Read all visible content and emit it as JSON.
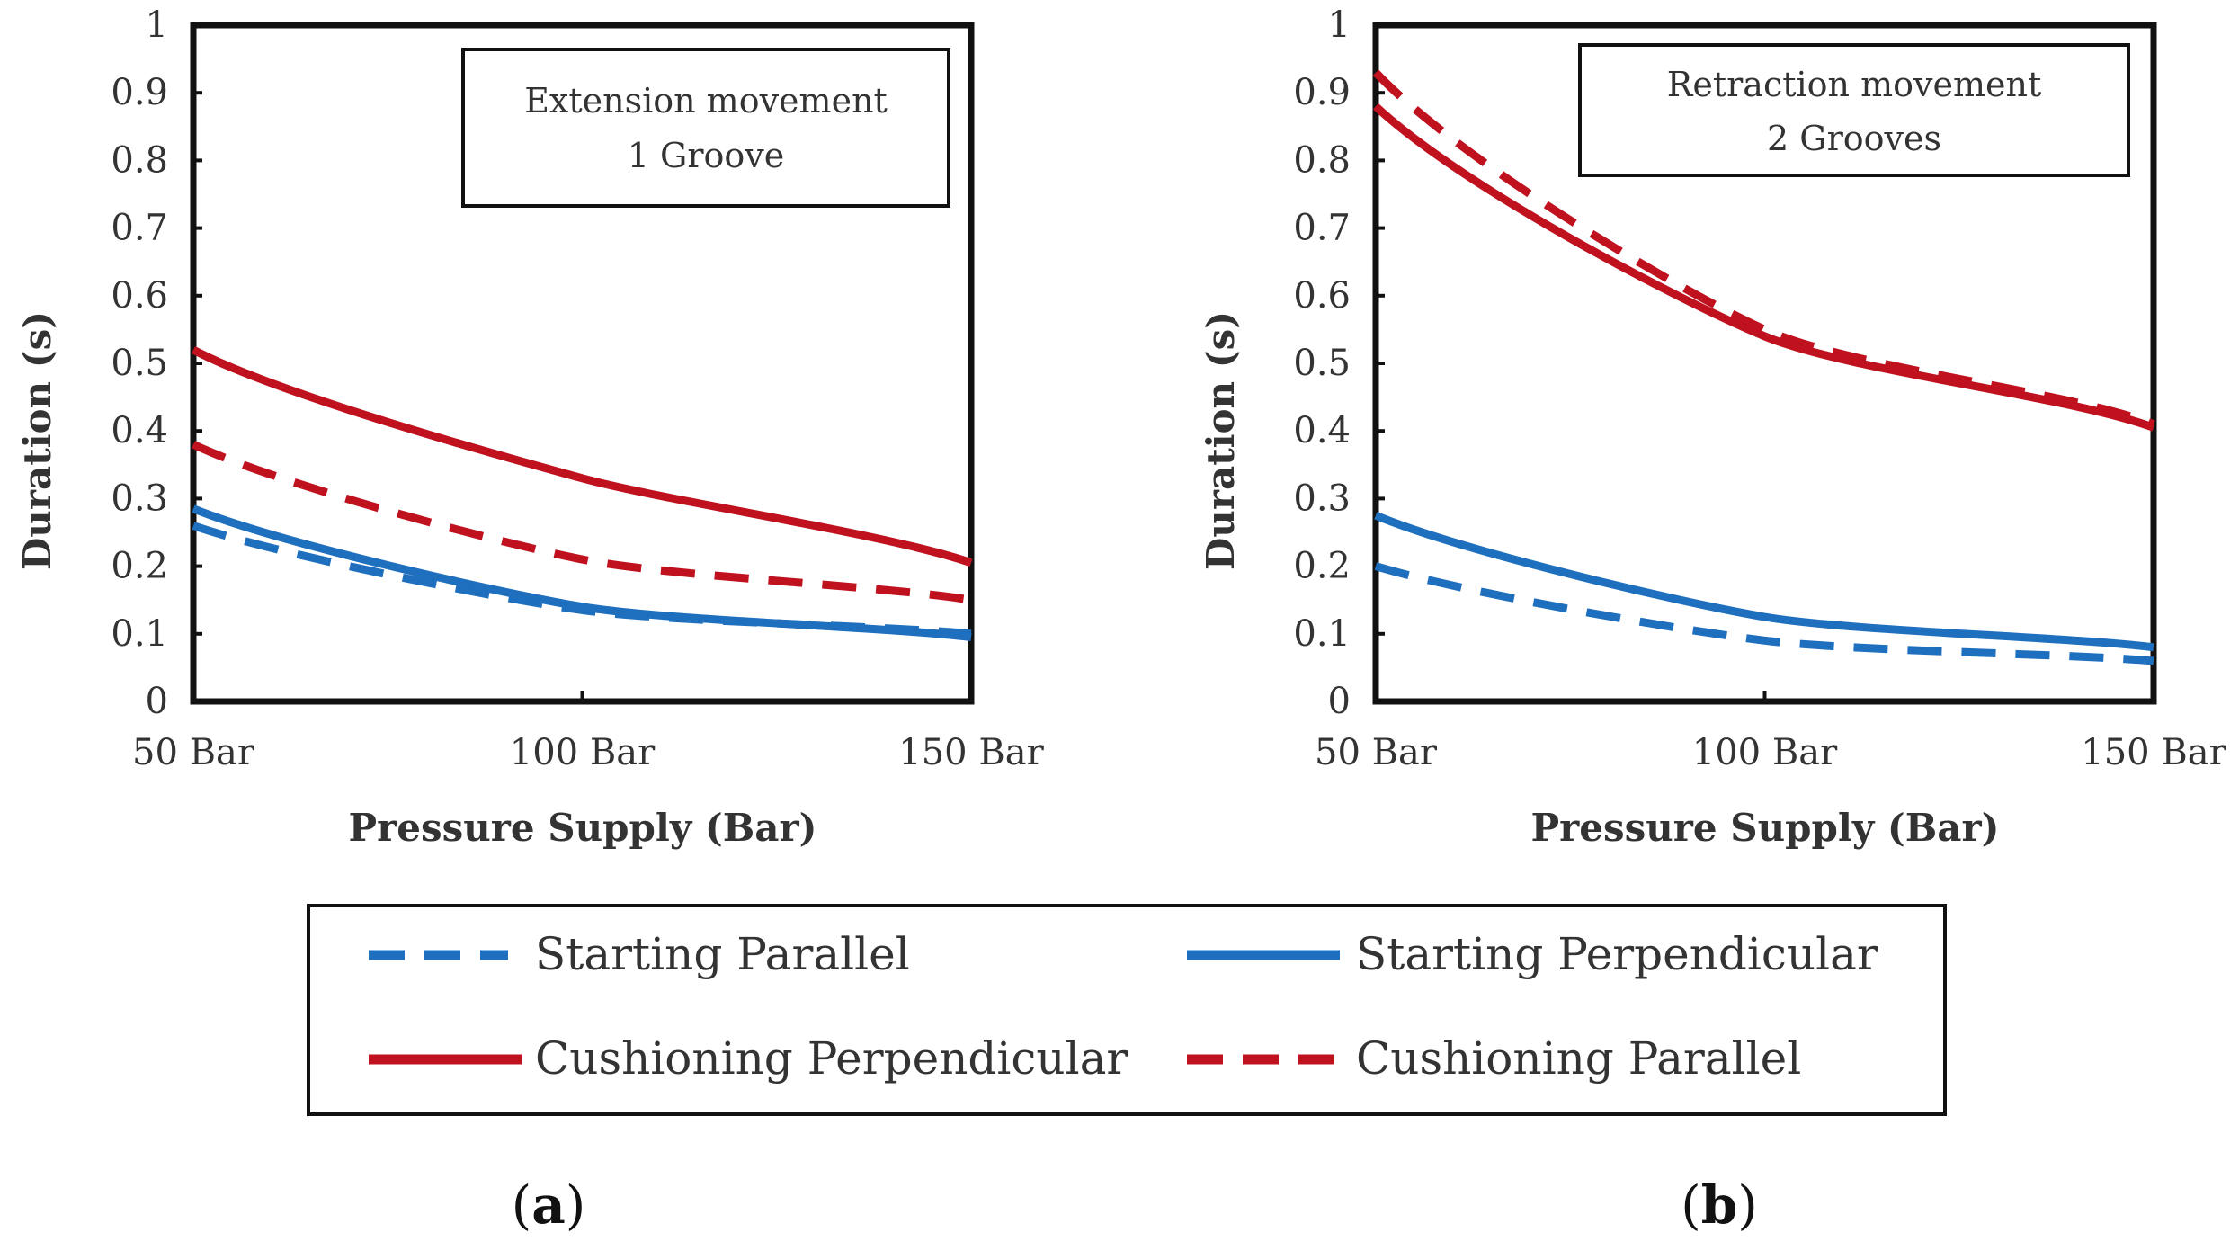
{
  "colors": {
    "blue": "#1f6fbf",
    "red": "#c0111f",
    "frame": "#111111",
    "text": "#333333"
  },
  "chart_data": [
    {
      "type": "line",
      "panel": "a",
      "annotation": [
        "Extension movement",
        "1 Groove"
      ],
      "xlabel": "Pressure Supply (Bar)",
      "ylabel": "Duration (s)",
      "categories": [
        "50 Bar",
        "100 Bar",
        "150 Bar"
      ],
      "x": [
        50,
        100,
        150
      ],
      "ylim": [
        0,
        1
      ],
      "yticks": [
        "0",
        "0.1",
        "0.2",
        "0.3",
        "0.4",
        "0.5",
        "0.6",
        "0.7",
        "0.8",
        "0.9",
        "1"
      ],
      "series": [
        {
          "name": "Starting Parallel",
          "color": "blue",
          "style": "dashed",
          "values": [
            0.26,
            0.135,
            0.1
          ]
        },
        {
          "name": "Starting Perpendicular",
          "color": "blue",
          "style": "solid",
          "values": [
            0.285,
            0.14,
            0.095
          ]
        },
        {
          "name": "Cushioning Perpendicular",
          "color": "red",
          "style": "solid",
          "values": [
            0.52,
            0.33,
            0.205
          ]
        },
        {
          "name": "Cushioning Parallel",
          "color": "red",
          "style": "dashed",
          "values": [
            0.38,
            0.21,
            0.15
          ]
        }
      ]
    },
    {
      "type": "line",
      "panel": "b",
      "annotation": [
        "Retraction movement",
        "2 Grooves"
      ],
      "xlabel": "Pressure Supply (Bar)",
      "ylabel": "Duration (s)",
      "categories": [
        "50 Bar",
        "100 Bar",
        "150 Bar"
      ],
      "x": [
        50,
        100,
        150
      ],
      "ylim": [
        0,
        1
      ],
      "yticks": [
        "0",
        "0.1",
        "0.2",
        "0.3",
        "0.4",
        "0.5",
        "0.6",
        "0.7",
        "0.8",
        "0.9",
        "1"
      ],
      "series": [
        {
          "name": "Starting Parallel",
          "color": "blue",
          "style": "dashed",
          "values": [
            0.2,
            0.09,
            0.06
          ]
        },
        {
          "name": "Starting Perpendicular",
          "color": "blue",
          "style": "solid",
          "values": [
            0.275,
            0.125,
            0.08
          ]
        },
        {
          "name": "Cushioning Perpendicular",
          "color": "red",
          "style": "solid",
          "values": [
            0.88,
            0.54,
            0.405
          ]
        },
        {
          "name": "Cushioning Parallel",
          "color": "red",
          "style": "dashed",
          "values": [
            0.93,
            0.55,
            0.41
          ]
        }
      ]
    }
  ],
  "legend": [
    {
      "label": "Starting Parallel",
      "color": "blue",
      "style": "dashed"
    },
    {
      "label": "Starting Perpendicular",
      "color": "blue",
      "style": "solid"
    },
    {
      "label": "Cushioning Perpendicular",
      "color": "red",
      "style": "solid"
    },
    {
      "label": "Cushioning Parallel",
      "color": "red",
      "style": "dashed"
    }
  ],
  "panel_labels": [
    {
      "open": "(",
      "letter": "a",
      "close": ")"
    },
    {
      "open": "(",
      "letter": "b",
      "close": ")"
    }
  ]
}
